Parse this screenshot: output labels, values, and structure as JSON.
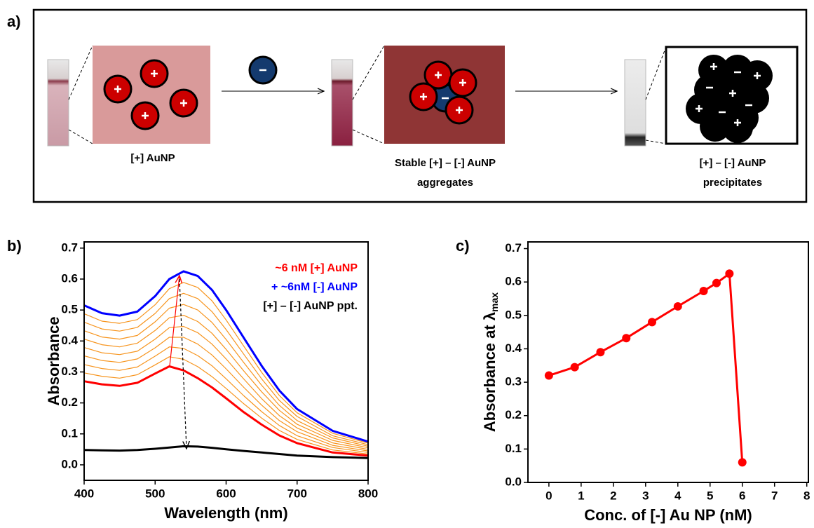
{
  "panel_a": {
    "label": "a)",
    "captions": [
      [
        "[+] AuNP"
      ],
      [
        "Stable [+] – [-] AuNP",
        "aggregates"
      ],
      [
        "[+] – [-] AuNP",
        "precipitates"
      ]
    ]
  },
  "chart_data": [
    {
      "type": "line",
      "panel_label": "b)",
      "x_label": "Wavelength (nm)",
      "y_label": "Absorbance",
      "x": [
        400,
        425,
        450,
        475,
        500,
        520,
        540,
        560,
        580,
        600,
        625,
        650,
        675,
        700,
        750,
        800
      ],
      "xlim": [
        400,
        800
      ],
      "ylim": [
        -0.05,
        0.72
      ],
      "xticks": [
        400,
        500,
        600,
        700,
        800
      ],
      "yticks": [
        {
          "value": 0,
          "label": "0.0"
        },
        0.1,
        0.2,
        0.3,
        0.4,
        0.5,
        0.6,
        0.7
      ],
      "legend": "upper right",
      "series": [
        {
          "color": "#f7941d",
          "values": [
            0.297,
            0.286,
            0.28,
            0.291,
            0.323,
            0.349,
            0.341,
            0.317,
            0.285,
            0.247,
            0.197,
            0.151,
            0.111,
            0.082,
            0.048,
            0.035
          ]
        },
        {
          "color": "#f7941d",
          "values": [
            0.324,
            0.311,
            0.305,
            0.316,
            0.351,
            0.381,
            0.376,
            0.353,
            0.32,
            0.278,
            0.223,
            0.172,
            0.127,
            0.094,
            0.056,
            0.04
          ]
        },
        {
          "color": "#f7941d",
          "values": [
            0.352,
            0.337,
            0.331,
            0.342,
            0.378,
            0.412,
            0.412,
            0.39,
            0.355,
            0.31,
            0.25,
            0.193,
            0.143,
            0.107,
            0.063,
            0.045
          ]
        },
        {
          "color": "#f7941d",
          "values": [
            0.379,
            0.362,
            0.356,
            0.367,
            0.406,
            0.443,
            0.447,
            0.427,
            0.39,
            0.342,
            0.277,
            0.214,
            0.159,
            0.119,
            0.071,
            0.05
          ]
        },
        {
          "color": "#f7941d",
          "values": [
            0.406,
            0.388,
            0.381,
            0.393,
            0.434,
            0.475,
            0.483,
            0.463,
            0.425,
            0.373,
            0.303,
            0.236,
            0.176,
            0.131,
            0.079,
            0.055
          ]
        },
        {
          "color": "#f7941d",
          "values": [
            0.433,
            0.413,
            0.406,
            0.418,
            0.462,
            0.506,
            0.518,
            0.5,
            0.46,
            0.405,
            0.33,
            0.257,
            0.192,
            0.143,
            0.087,
            0.06
          ]
        },
        {
          "color": "#f7941d",
          "values": [
            0.461,
            0.439,
            0.432,
            0.444,
            0.489,
            0.537,
            0.554,
            0.537,
            0.495,
            0.437,
            0.357,
            0.278,
            0.208,
            0.156,
            0.094,
            0.065
          ]
        },
        {
          "color": "#f7941d",
          "values": [
            0.488,
            0.464,
            0.457,
            0.469,
            0.517,
            0.569,
            0.589,
            0.573,
            0.53,
            0.468,
            0.383,
            0.299,
            0.224,
            0.168,
            0.102,
            0.07
          ]
        },
        {
          "name": "~6 nM [+] AuNP",
          "color": "#ff0000",
          "values": [
            0.27,
            0.26,
            0.255,
            0.265,
            0.295,
            0.318,
            0.305,
            0.28,
            0.25,
            0.215,
            0.17,
            0.13,
            0.095,
            0.07,
            0.04,
            0.03
          ]
        },
        {
          "name": "+ ~6nM [-] AuNP",
          "color": "#0000ff",
          "values": [
            0.515,
            0.49,
            0.482,
            0.495,
            0.545,
            0.6,
            0.625,
            0.61,
            0.565,
            0.5,
            0.41,
            0.32,
            0.24,
            0.18,
            0.11,
            0.075
          ]
        },
        {
          "name": "[+] – [-] AuNP ppt.",
          "color": "#000000",
          "values": [
            0.048,
            0.047,
            0.046,
            0.048,
            0.052,
            0.056,
            0.06,
            0.059,
            0.055,
            0.05,
            0.045,
            0.04,
            0.035,
            0.03,
            0.025,
            0.022
          ]
        }
      ]
    },
    {
      "type": "line",
      "markers": true,
      "panel_label": "c)",
      "x_label": "Conc. of [-] Au NP (nM)",
      "y_label": "Absorbance at λ",
      "y_label_subscript": "max",
      "x": [
        0,
        0.8,
        1.6,
        2.4,
        3.2,
        4.0,
        4.8,
        5.2,
        5.6,
        6.0
      ],
      "xlim": [
        -0.65,
        8.05
      ],
      "ylim": [
        0,
        0.72
      ],
      "xticks": [
        0,
        1,
        2,
        3,
        4,
        5,
        6,
        7,
        8
      ],
      "yticks": [
        {
          "value": 0,
          "label": "0.0"
        },
        0.1,
        0.2,
        0.3,
        0.4,
        0.5,
        0.6,
        0.7
      ],
      "series": [
        {
          "color": "#ff0000",
          "values": [
            0.32,
            0.345,
            0.39,
            0.432,
            0.48,
            0.527,
            0.573,
            0.597,
            0.625,
            0.06
          ]
        }
      ]
    }
  ]
}
